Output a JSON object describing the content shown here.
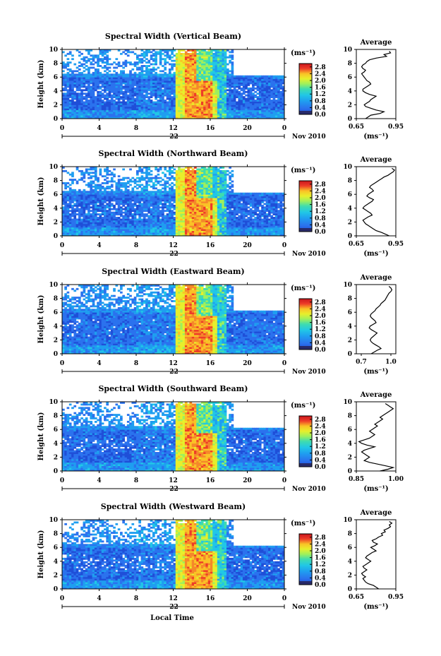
{
  "chart_data": [
    {
      "type": "heatmap",
      "title": "Spectral Width (Vertical Beam)",
      "ylabel": "Height (km)",
      "xticks": [
        "0",
        "4",
        "8",
        "12",
        "16",
        "20",
        "0"
      ],
      "yticks": [
        "0",
        "2",
        "4",
        "6",
        "8",
        "10"
      ],
      "xlim": [
        0,
        24
      ],
      "ylim": [
        0,
        10
      ],
      "date_label": "22",
      "month_year": "Nov 2010",
      "colorbar": {
        "unit": "(ms⁻¹)",
        "ticks": [
          "0.0",
          "0.4",
          "0.8",
          "1.2",
          "1.6",
          "2.0",
          "2.4",
          "2.8"
        ],
        "range": [
          0,
          3.0
        ]
      },
      "average_profile": {
        "title": "Average",
        "xlabel": "(ms⁻¹)",
        "xticks": [
          "0.65",
          "0.95"
        ],
        "xlim": [
          0.65,
          0.95
        ],
        "yticks": [
          "0",
          "2",
          "4",
          "6",
          "8",
          "10"
        ],
        "height": [
          0,
          0.25,
          0.5,
          0.75,
          1,
          1.25,
          1.5,
          1.75,
          2,
          2.25,
          2.5,
          2.75,
          3,
          3.25,
          3.5,
          3.75,
          4,
          4.25,
          4.5,
          4.75,
          5,
          5.25,
          5.5,
          5.75,
          6,
          6.25,
          6.5,
          6.75,
          7,
          7.25,
          7.5,
          7.75,
          8,
          8.25,
          8.5,
          8.75,
          9,
          9.25,
          9.5,
          9.75
        ],
        "values": [
          0.72,
          0.74,
          0.76,
          0.83,
          0.86,
          0.8,
          0.76,
          0.72,
          0.71,
          0.73,
          0.75,
          0.76,
          0.78,
          0.8,
          0.75,
          0.72,
          0.7,
          0.7,
          0.72,
          0.74,
          0.76,
          0.75,
          0.73,
          0.72,
          0.71,
          0.7,
          0.69,
          0.71,
          0.72,
          0.7,
          0.69,
          0.7,
          0.72,
          0.73,
          0.75,
          0.8,
          0.88,
          0.86,
          0.91,
          0.9
        ]
      }
    },
    {
      "type": "heatmap",
      "title": "Spectral Width (Northward Beam)",
      "ylabel": "Height (km)",
      "xticks": [
        "0",
        "4",
        "8",
        "12",
        "16",
        "20",
        "0"
      ],
      "yticks": [
        "0",
        "2",
        "4",
        "6",
        "8",
        "10"
      ],
      "xlim": [
        0,
        24
      ],
      "ylim": [
        0,
        10
      ],
      "date_label": "22",
      "month_year": "Nov 2010",
      "colorbar": {
        "unit": "(ms⁻¹)",
        "ticks": [
          "0.0",
          "0.4",
          "0.8",
          "1.2",
          "1.6",
          "2.0",
          "2.4",
          "2.8"
        ],
        "range": [
          0,
          3.0
        ]
      },
      "average_profile": {
        "title": "Average",
        "xlabel": "(ms⁻¹)",
        "xticks": [
          "0.65",
          "0.95"
        ],
        "xlim": [
          0.65,
          0.95
        ],
        "yticks": [
          "0",
          "2",
          "4",
          "6",
          "8",
          "10"
        ],
        "height": [
          0,
          0.25,
          0.5,
          0.75,
          1,
          1.25,
          1.5,
          1.75,
          2,
          2.25,
          2.5,
          2.75,
          3,
          3.25,
          3.5,
          3.75,
          4,
          4.25,
          4.5,
          4.75,
          5,
          5.25,
          5.5,
          5.75,
          6,
          6.25,
          6.5,
          6.75,
          7,
          7.25,
          7.5,
          7.75,
          8,
          8.25,
          8.5,
          8.75,
          9,
          9.25,
          9.5,
          9.75
        ],
        "values": [
          0.9,
          0.87,
          0.84,
          0.8,
          0.78,
          0.76,
          0.74,
          0.72,
          0.71,
          0.7,
          0.72,
          0.74,
          0.77,
          0.76,
          0.74,
          0.72,
          0.7,
          0.71,
          0.73,
          0.75,
          0.77,
          0.78,
          0.75,
          0.73,
          0.74,
          0.76,
          0.78,
          0.77,
          0.75,
          0.76,
          0.78,
          0.8,
          0.82,
          0.84,
          0.86,
          0.89,
          0.91,
          0.93,
          0.94,
          0.92
        ]
      }
    },
    {
      "type": "heatmap",
      "title": "Spectral Width (Eastward Beam)",
      "ylabel": "Height (km)",
      "xticks": [
        "0",
        "4",
        "8",
        "12",
        "16",
        "20",
        "0"
      ],
      "yticks": [
        "0",
        "2",
        "4",
        "6",
        "8",
        "10"
      ],
      "xlim": [
        0,
        24
      ],
      "ylim": [
        0,
        10
      ],
      "date_label": "22",
      "month_year": "Nov 2010",
      "colorbar": {
        "unit": "(ms⁻¹)",
        "ticks": [
          "0.0",
          "0.4",
          "0.8",
          "1.2",
          "1.6",
          "2.0",
          "2.4",
          "2.8"
        ],
        "range": [
          0,
          3.0
        ]
      },
      "average_profile": {
        "title": "Average",
        "xlabel": "(ms⁻¹)",
        "xticks": [
          "0.7",
          "1.0"
        ],
        "xlim": [
          0.65,
          1.05
        ],
        "yticks": [
          "0",
          "2",
          "4",
          "6",
          "8",
          "10"
        ],
        "height": [
          0,
          0.25,
          0.5,
          0.75,
          1,
          1.25,
          1.5,
          1.75,
          2,
          2.25,
          2.5,
          2.75,
          3,
          3.25,
          3.5,
          3.75,
          4,
          4.25,
          4.5,
          4.75,
          5,
          5.25,
          5.5,
          5.75,
          6,
          6.25,
          6.5,
          6.75,
          7,
          7.25,
          7.5,
          7.75,
          8,
          8.25,
          8.5,
          8.75,
          9,
          9.25,
          9.5,
          9.75
        ],
        "values": [
          0.8,
          0.83,
          0.86,
          0.9,
          0.88,
          0.85,
          0.82,
          0.8,
          0.79,
          0.8,
          0.82,
          0.84,
          0.86,
          0.83,
          0.8,
          0.78,
          0.79,
          0.82,
          0.85,
          0.84,
          0.82,
          0.8,
          0.79,
          0.8,
          0.82,
          0.84,
          0.85,
          0.87,
          0.89,
          0.9,
          0.92,
          0.94,
          0.95,
          0.96,
          0.97,
          0.98,
          1.0,
          1.01,
          1.0,
          0.98
        ]
      }
    },
    {
      "type": "heatmap",
      "title": "Spectral Width (Southward Beam)",
      "ylabel": "Height (km)",
      "xticks": [
        "0",
        "4",
        "8",
        "12",
        "16",
        "20",
        "0"
      ],
      "yticks": [
        "0",
        "2",
        "4",
        "6",
        "8",
        "10"
      ],
      "xlim": [
        0,
        24
      ],
      "ylim": [
        0,
        10
      ],
      "date_label": "22",
      "month_year": "Nov 2010",
      "colorbar": {
        "unit": "(ms⁻¹)",
        "ticks": [
          "0.0",
          "0.4",
          "0.8",
          "1.2",
          "1.6",
          "2.0",
          "2.4",
          "2.8"
        ],
        "range": [
          0,
          3.0
        ]
      },
      "average_profile": {
        "title": "Average",
        "xlabel": "(ms⁻¹)",
        "xticks": [
          "0.85",
          "1.00"
        ],
        "xlim": [
          0.85,
          1.0
        ],
        "yticks": [
          "0",
          "2",
          "4",
          "6",
          "8",
          "10"
        ],
        "height": [
          0,
          0.25,
          0.5,
          0.75,
          1,
          1.25,
          1.5,
          1.75,
          2,
          2.25,
          2.5,
          2.75,
          3,
          3.25,
          3.5,
          3.75,
          4,
          4.25,
          4.5,
          4.75,
          5,
          5.25,
          5.5,
          5.75,
          6,
          6.25,
          6.5,
          6.75,
          7,
          7.25,
          7.5,
          7.75,
          8,
          8.25,
          8.5,
          8.75,
          9,
          9.25,
          9.5,
          9.75
        ],
        "values": [
          0.94,
          0.97,
          0.99,
          0.96,
          0.93,
          0.9,
          0.88,
          0.89,
          0.9,
          0.89,
          0.88,
          0.87,
          0.88,
          0.9,
          0.92,
          0.89,
          0.87,
          0.86,
          0.88,
          0.9,
          0.91,
          0.92,
          0.91,
          0.9,
          0.91,
          0.92,
          0.93,
          0.92,
          0.93,
          0.94,
          0.95,
          0.94,
          0.95,
          0.96,
          0.97,
          0.98,
          0.99,
          0.98,
          0.97,
          0.96
        ]
      }
    },
    {
      "type": "heatmap",
      "title": "Spectral Width (Westward Beam)",
      "ylabel": "Height (km)",
      "xlabel": "Local Time",
      "xticks": [
        "0",
        "4",
        "8",
        "12",
        "16",
        "20",
        "0"
      ],
      "yticks": [
        "0",
        "2",
        "4",
        "6",
        "8",
        "10"
      ],
      "xlim": [
        0,
        24
      ],
      "ylim": [
        0,
        10
      ],
      "date_label": "22",
      "month_year": "Nov 2010",
      "colorbar": {
        "unit": "(ms⁻¹)",
        "ticks": [
          "0.0",
          "0.4",
          "0.8",
          "1.2",
          "1.6",
          "2.0",
          "2.4",
          "2.8"
        ],
        "range": [
          0,
          3.0
        ]
      },
      "average_profile": {
        "title": "Average",
        "xlabel": "(ms⁻¹)",
        "xticks": [
          "0.65",
          "0.95"
        ],
        "xlim": [
          0.65,
          0.95
        ],
        "yticks": [
          "0",
          "2",
          "4",
          "6",
          "8",
          "10"
        ],
        "height": [
          0,
          0.25,
          0.5,
          0.75,
          1,
          1.25,
          1.5,
          1.75,
          2,
          2.25,
          2.5,
          2.75,
          3,
          3.25,
          3.5,
          3.75,
          4,
          4.25,
          4.5,
          4.75,
          5,
          5.25,
          5.5,
          5.75,
          6,
          6.25,
          6.5,
          6.75,
          7,
          7.25,
          7.5,
          7.75,
          8,
          8.25,
          8.5,
          8.75,
          9,
          9.25,
          9.5,
          9.75
        ],
        "values": [
          0.82,
          0.8,
          0.78,
          0.74,
          0.72,
          0.71,
          0.7,
          0.72,
          0.7,
          0.69,
          0.71,
          0.73,
          0.71,
          0.7,
          0.72,
          0.74,
          0.76,
          0.74,
          0.72,
          0.73,
          0.75,
          0.77,
          0.8,
          0.78,
          0.76,
          0.79,
          0.81,
          0.78,
          0.77,
          0.8,
          0.82,
          0.85,
          0.84,
          0.87,
          0.86,
          0.89,
          0.91,
          0.9,
          0.92,
          0.9
        ]
      }
    }
  ],
  "colors": {
    "scale": [
      "#3a2f8f",
      "#1f4fd8",
      "#2b72ee",
      "#1f9ef0",
      "#21c7e6",
      "#3fdcaf",
      "#9ff05c",
      "#e7ef2c",
      "#fac226",
      "#f5882a",
      "#ee3c28",
      "#c9161c"
    ],
    "low_band": "#282a6a"
  }
}
